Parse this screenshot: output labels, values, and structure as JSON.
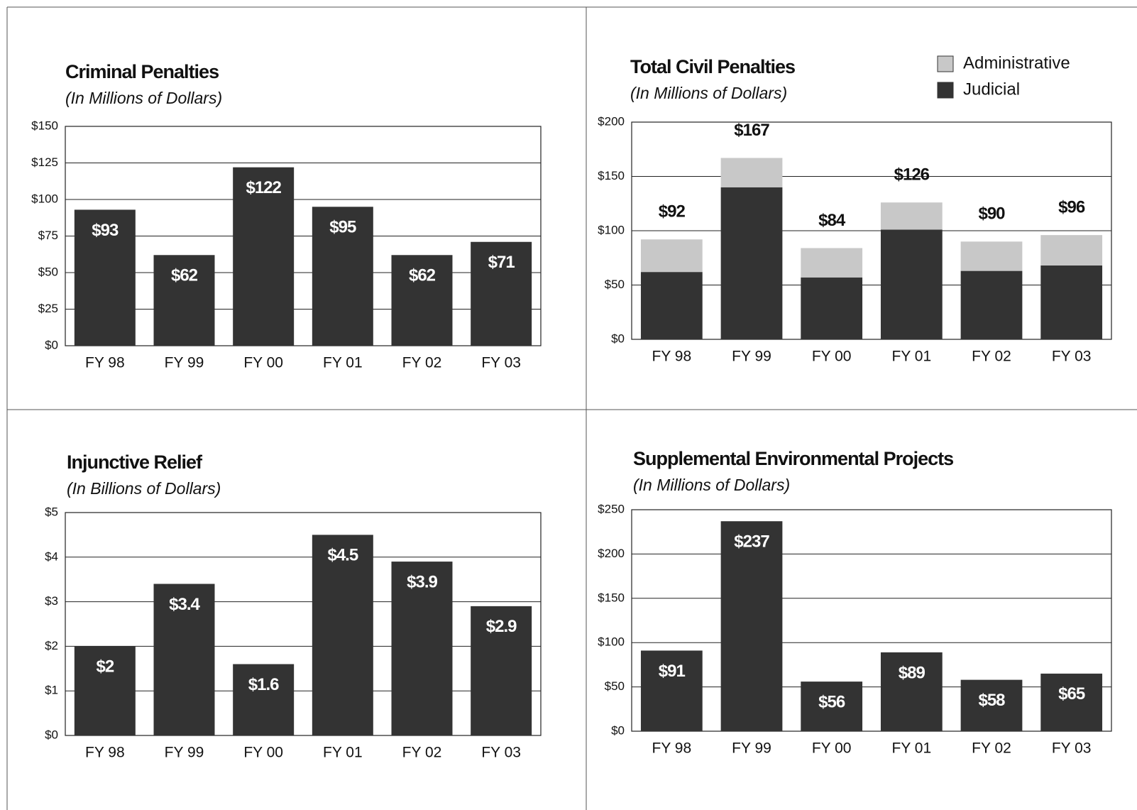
{
  "chart_data": [
    {
      "type": "bar",
      "title": "Criminal Penalties",
      "subtitle": "(In Millions of Dollars)",
      "categories": [
        "FY 98",
        "FY 99",
        "FY 00",
        "FY 01",
        "FY 02",
        "FY 03"
      ],
      "values": [
        93,
        62,
        122,
        95,
        62,
        71
      ],
      "value_labels": [
        "$93",
        "$62",
        "$122",
        "$95",
        "$62",
        "$71"
      ],
      "color": "#333333",
      "ylim": [
        0,
        150
      ],
      "yticks": [
        {
          "value": 0,
          "label": "$0"
        },
        {
          "value": 25,
          "label": "$25"
        },
        {
          "value": 50,
          "label": "$50"
        },
        {
          "value": 75,
          "label": "$75"
        },
        {
          "value": 100,
          "label": "$100"
        },
        {
          "value": 125,
          "label": "$125"
        },
        {
          "value": 150,
          "label": "$150"
        }
      ],
      "grid": true
    },
    {
      "type": "stacked_bar",
      "title": "Total Civil Penalties",
      "subtitle": "(In Millions of Dollars)",
      "categories": [
        "FY 98",
        "FY 99",
        "FY 00",
        "FY 01",
        "FY 02",
        "FY 03"
      ],
      "series": [
        {
          "name": "Judicial",
          "color": "#333333",
          "values": [
            62,
            140,
            57,
            101,
            63,
            68
          ]
        },
        {
          "name": "Administrative",
          "color": "#c8c8c8",
          "values": [
            30,
            27,
            27,
            25,
            27,
            28
          ]
        }
      ],
      "totals": [
        92,
        167,
        84,
        126,
        90,
        96
      ],
      "total_labels": [
        "$92",
        "$167",
        "$84",
        "$126",
        "$90",
        "$96"
      ],
      "ylim": [
        0,
        200
      ],
      "yticks": [
        {
          "value": 0,
          "label": "$0"
        },
        {
          "value": 50,
          "label": "$50"
        },
        {
          "value": 100,
          "label": "$100"
        },
        {
          "value": 150,
          "label": "$150"
        },
        {
          "value": 200,
          "label": "$200"
        }
      ],
      "grid": true,
      "legend": "top-right"
    },
    {
      "type": "bar",
      "title": "Injunctive Relief",
      "subtitle": "(In Billions of Dollars)",
      "categories": [
        "FY 98",
        "FY 99",
        "FY 00",
        "FY 01",
        "FY 02",
        "FY 03"
      ],
      "values": [
        2,
        3.4,
        1.6,
        4.5,
        3.9,
        2.9
      ],
      "value_labels": [
        "$2",
        "$3.4",
        "$1.6",
        "$4.5",
        "$3.9",
        "$2.9"
      ],
      "color": "#333333",
      "ylim": [
        0,
        5
      ],
      "yticks": [
        {
          "value": 0,
          "label": "$0"
        },
        {
          "value": 1,
          "label": "$1"
        },
        {
          "value": 2,
          "label": "$2"
        },
        {
          "value": 3,
          "label": "$3"
        },
        {
          "value": 4,
          "label": "$4"
        },
        {
          "value": 5,
          "label": "$5"
        }
      ],
      "grid": true
    },
    {
      "type": "bar",
      "title": "Supplemental Environmental Projects",
      "subtitle": "(In Millions of Dollars)",
      "categories": [
        "FY 98",
        "FY 99",
        "FY 00",
        "FY 01",
        "FY 02",
        "FY 03"
      ],
      "values": [
        91,
        237,
        56,
        89,
        58,
        65
      ],
      "value_labels": [
        "$91",
        "$237",
        "$56",
        "$89",
        "$58",
        "$65"
      ],
      "color": "#333333",
      "ylim": [
        0,
        250
      ],
      "yticks": [
        {
          "value": 0,
          "label": "$0"
        },
        {
          "value": 50,
          "label": "$50"
        },
        {
          "value": 100,
          "label": "$100"
        },
        {
          "value": 150,
          "label": "$150"
        },
        {
          "value": 200,
          "label": "$200"
        },
        {
          "value": 250,
          "label": "$250"
        }
      ],
      "grid": true
    }
  ]
}
